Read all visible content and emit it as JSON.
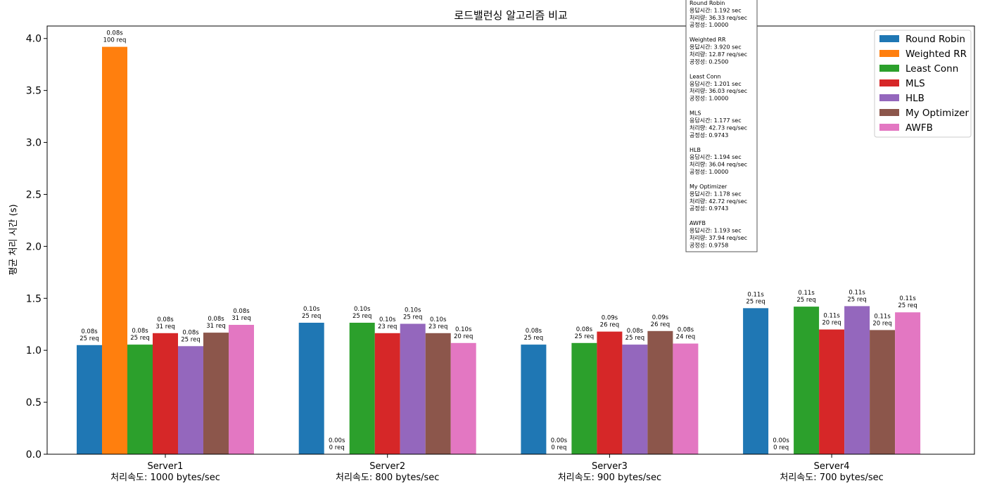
{
  "chart_data": {
    "type": "bar",
    "title": "로드밸런싱 알고리즘 비교",
    "xlabel": "",
    "ylabel": "평균 처리 시간 (s)",
    "ylim": [
      0,
      4.12
    ],
    "yticks": [
      "0.0",
      "0.5",
      "1.0",
      "1.5",
      "2.0",
      "2.5",
      "3.0",
      "3.5",
      "4.0"
    ],
    "grid": false,
    "legend_position": "top-right",
    "categories": [
      {
        "name": "Server1",
        "sub": "처리속도: 1000 bytes/sec"
      },
      {
        "name": "Server2",
        "sub": "처리속도: 800 bytes/sec"
      },
      {
        "name": "Server3",
        "sub": "처리속도: 900 bytes/sec"
      },
      {
        "name": "Server4",
        "sub": "처리속도: 700 bytes/sec"
      }
    ],
    "series": [
      {
        "name": "Round Robin",
        "color": "#1f77b4",
        "values": [
          1.05,
          1.265,
          1.055,
          1.405
        ],
        "labels": [
          [
            "0.08s",
            "25 req"
          ],
          [
            "0.10s",
            "25 req"
          ],
          [
            "0.08s",
            "25 req"
          ],
          [
            "0.11s",
            "25 req"
          ]
        ]
      },
      {
        "name": "Weighted RR",
        "color": "#ff7f0e",
        "values": [
          3.92,
          0.0,
          0.0,
          0.0
        ],
        "labels": [
          [
            "0.08s",
            "100 req"
          ],
          [
            "0.00s",
            "0 req"
          ],
          [
            "0.00s",
            "0 req"
          ],
          [
            "0.00s",
            "0 req"
          ]
        ]
      },
      {
        "name": "Least Conn",
        "color": "#2ca02c",
        "values": [
          1.055,
          1.265,
          1.07,
          1.42
        ],
        "labels": [
          [
            "0.08s",
            "25 req"
          ],
          [
            "0.10s",
            "25 req"
          ],
          [
            "0.08s",
            "25 req"
          ],
          [
            "0.11s",
            "25 req"
          ]
        ]
      },
      {
        "name": "MLS",
        "color": "#d62728",
        "values": [
          1.165,
          1.165,
          1.18,
          1.2
        ],
        "labels": [
          [
            "0.08s",
            "31 req"
          ],
          [
            "0.10s",
            "23 req"
          ],
          [
            "0.09s",
            "26 req"
          ],
          [
            "0.11s",
            "20 req"
          ]
        ]
      },
      {
        "name": "HLB",
        "color": "#9467bd",
        "values": [
          1.04,
          1.255,
          1.055,
          1.425
        ],
        "labels": [
          [
            "0.08s",
            "25 req"
          ],
          [
            "0.10s",
            "25 req"
          ],
          [
            "0.08s",
            "25 req"
          ],
          [
            "0.11s",
            "25 req"
          ]
        ]
      },
      {
        "name": "My Optimizer",
        "color": "#8c564b",
        "values": [
          1.17,
          1.165,
          1.185,
          1.195
        ],
        "labels": [
          [
            "0.08s",
            "31 req"
          ],
          [
            "0.10s",
            "23 req"
          ],
          [
            "0.09s",
            "26 req"
          ],
          [
            "0.11s",
            "20 req"
          ]
        ]
      },
      {
        "name": "AWFB",
        "color": "#e377c2",
        "values": [
          1.245,
          1.07,
          1.065,
          1.365
        ],
        "labels": [
          [
            "0.08s",
            "31 req"
          ],
          [
            "0.10s",
            "20 req"
          ],
          [
            "0.08s",
            "24 req"
          ],
          [
            "0.11s",
            "25 req"
          ]
        ]
      }
    ],
    "stats_box": [
      {
        "name": "Round Robin",
        "lines": [
          "응답시간: 1.192 sec",
          "처리량: 36.33 req/sec",
          "공정성: 1.0000"
        ]
      },
      {
        "name": "Weighted RR",
        "lines": [
          "응답시간: 3.920 sec",
          "처리량: 12.87 req/sec",
          "공정성: 0.2500"
        ]
      },
      {
        "name": "Least Conn",
        "lines": [
          "응답시간: 1.201 sec",
          "처리량: 36.03 req/sec",
          "공정성: 1.0000"
        ]
      },
      {
        "name": "MLS",
        "lines": [
          "응답시간: 1.177 sec",
          "처리량: 42.73 req/sec",
          "공정성: 0.9743"
        ]
      },
      {
        "name": "HLB",
        "lines": [
          "응답시간: 1.194 sec",
          "처리량: 36.04 req/sec",
          "공정성: 1.0000"
        ]
      },
      {
        "name": "My Optimizer",
        "lines": [
          "응답시간: 1.178 sec",
          "처리량: 42.72 req/sec",
          "공정성: 0.9743"
        ]
      },
      {
        "name": "AWFB",
        "lines": [
          "응답시간: 1.193 sec",
          "처리량: 37.94 req/sec",
          "공정성: 0.9758"
        ]
      }
    ]
  }
}
